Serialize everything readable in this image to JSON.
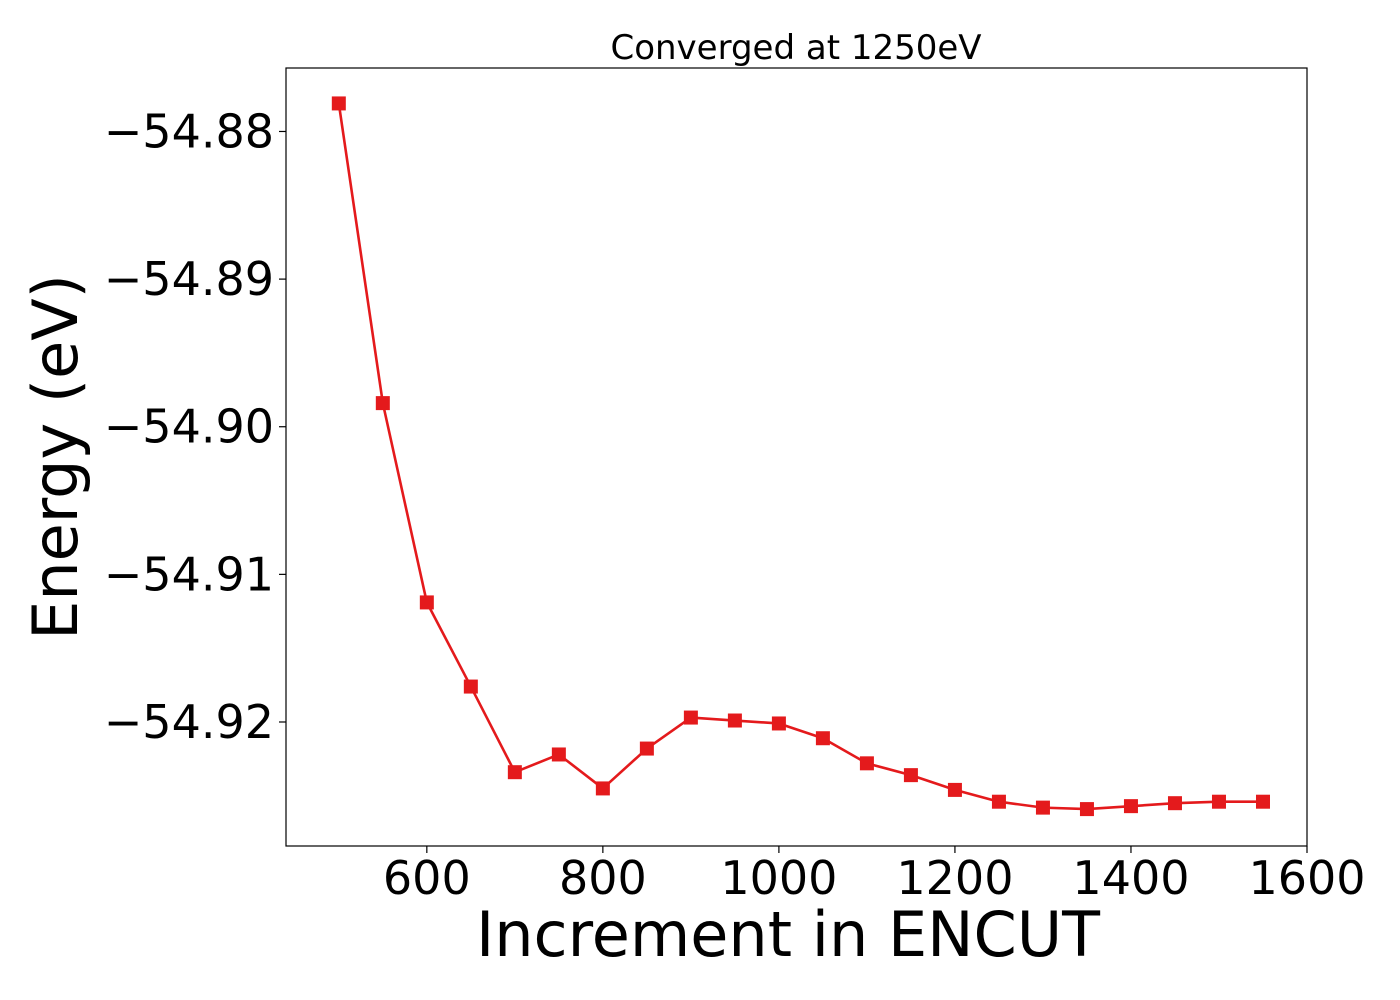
{
  "chart_data": {
    "type": "line",
    "title": "Converged at 1250eV",
    "xlabel": "Increment in ENCUT",
    "ylabel": "Energy (eV)",
    "xlim": [
      440,
      1600
    ],
    "ylim": [
      -54.9284,
      -54.8757
    ],
    "xticks": [
      {
        "value": 600,
        "label": "600"
      },
      {
        "value": 800,
        "label": "800"
      },
      {
        "value": 1000,
        "label": "1000"
      },
      {
        "value": 1200,
        "label": "1200"
      },
      {
        "value": 1400,
        "label": "1400"
      },
      {
        "value": 1600,
        "label": "1600"
      }
    ],
    "yticks": [
      {
        "value": -54.88,
        "label": "−54.88"
      },
      {
        "value": -54.89,
        "label": "−54.89"
      },
      {
        "value": -54.9,
        "label": "−54.90"
      },
      {
        "value": -54.91,
        "label": "−54.91"
      },
      {
        "value": -54.92,
        "label": "−54.92"
      }
    ],
    "grid": false,
    "legend": "none",
    "series": [
      {
        "color": "#e41a1c",
        "marker": "square",
        "x": [
          500,
          550,
          600,
          650,
          700,
          750,
          800,
          850,
          900,
          950,
          1000,
          1050,
          1100,
          1150,
          1200,
          1250,
          1300,
          1350,
          1400,
          1450,
          1500,
          1550
        ],
        "y": [
          -54.8781,
          -54.8984,
          -54.9119,
          -54.9176,
          -54.9234,
          -54.9222,
          -54.9245,
          -54.9218,
          -54.9197,
          -54.9199,
          -54.9201,
          -54.9211,
          -54.9228,
          -54.9236,
          -54.9246,
          -54.9254,
          -54.9258,
          -54.9259,
          -54.9257,
          -54.9255,
          -54.9254,
          -54.9254
        ]
      }
    ]
  }
}
